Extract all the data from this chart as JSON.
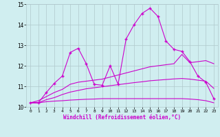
{
  "xlabel": "Windchill (Refroidissement éolien,°C)",
  "xlim": [
    -0.5,
    23.5
  ],
  "ylim": [
    10,
    15
  ],
  "xticks": [
    0,
    1,
    2,
    3,
    4,
    5,
    6,
    7,
    8,
    9,
    10,
    11,
    12,
    13,
    14,
    15,
    16,
    17,
    18,
    19,
    20,
    21,
    22,
    23
  ],
  "yticks": [
    10,
    11,
    12,
    13,
    14,
    15
  ],
  "bg_color": "#d0eef0",
  "line_color": "#cc00cc",
  "grid_color": "#b0c8cc",
  "lines": [
    {
      "x": [
        0,
        1,
        2,
        3,
        4,
        5,
        6,
        7,
        8,
        9,
        10,
        11,
        12,
        13,
        14,
        15,
        16,
        17,
        18,
        19,
        20,
        21,
        22,
        23
      ],
      "y": [
        10.2,
        10.2,
        10.7,
        11.15,
        11.5,
        12.65,
        12.85,
        12.1,
        11.1,
        11.05,
        12.0,
        11.1,
        13.3,
        14.0,
        14.55,
        14.8,
        14.4,
        13.2,
        12.8,
        12.7,
        12.2,
        11.5,
        11.2,
        10.4
      ],
      "marker": "+"
    },
    {
      "x": [
        0,
        1,
        2,
        3,
        4,
        5,
        6,
        7,
        8,
        9,
        10,
        11,
        12,
        13,
        14,
        15,
        16,
        17,
        18,
        19,
        20,
        21,
        22,
        23
      ],
      "y": [
        10.2,
        10.3,
        10.5,
        10.7,
        10.85,
        11.1,
        11.2,
        11.25,
        11.3,
        11.35,
        11.45,
        11.55,
        11.65,
        11.75,
        11.85,
        11.95,
        12.0,
        12.05,
        12.1,
        12.55,
        12.15,
        12.2,
        12.25,
        12.1
      ],
      "marker": null
    },
    {
      "x": [
        0,
        1,
        2,
        3,
        4,
        5,
        6,
        7,
        8,
        9,
        10,
        11,
        12,
        13,
        14,
        15,
        16,
        17,
        18,
        19,
        20,
        21,
        22,
        23
      ],
      "y": [
        10.2,
        10.2,
        10.35,
        10.45,
        10.6,
        10.72,
        10.8,
        10.88,
        10.93,
        10.98,
        11.03,
        11.08,
        11.13,
        11.18,
        11.22,
        11.27,
        11.3,
        11.33,
        11.36,
        11.38,
        11.35,
        11.3,
        11.25,
        10.9
      ],
      "marker": null
    },
    {
      "x": [
        0,
        1,
        2,
        3,
        4,
        5,
        6,
        7,
        8,
        9,
        10,
        11,
        12,
        13,
        14,
        15,
        16,
        17,
        18,
        19,
        20,
        21,
        22,
        23
      ],
      "y": [
        10.2,
        10.2,
        10.25,
        10.28,
        10.3,
        10.33,
        10.35,
        10.37,
        10.38,
        10.4,
        10.4,
        10.4,
        10.4,
        10.4,
        10.4,
        10.4,
        10.4,
        10.4,
        10.4,
        10.4,
        10.38,
        10.35,
        10.3,
        10.2
      ],
      "marker": null
    }
  ]
}
